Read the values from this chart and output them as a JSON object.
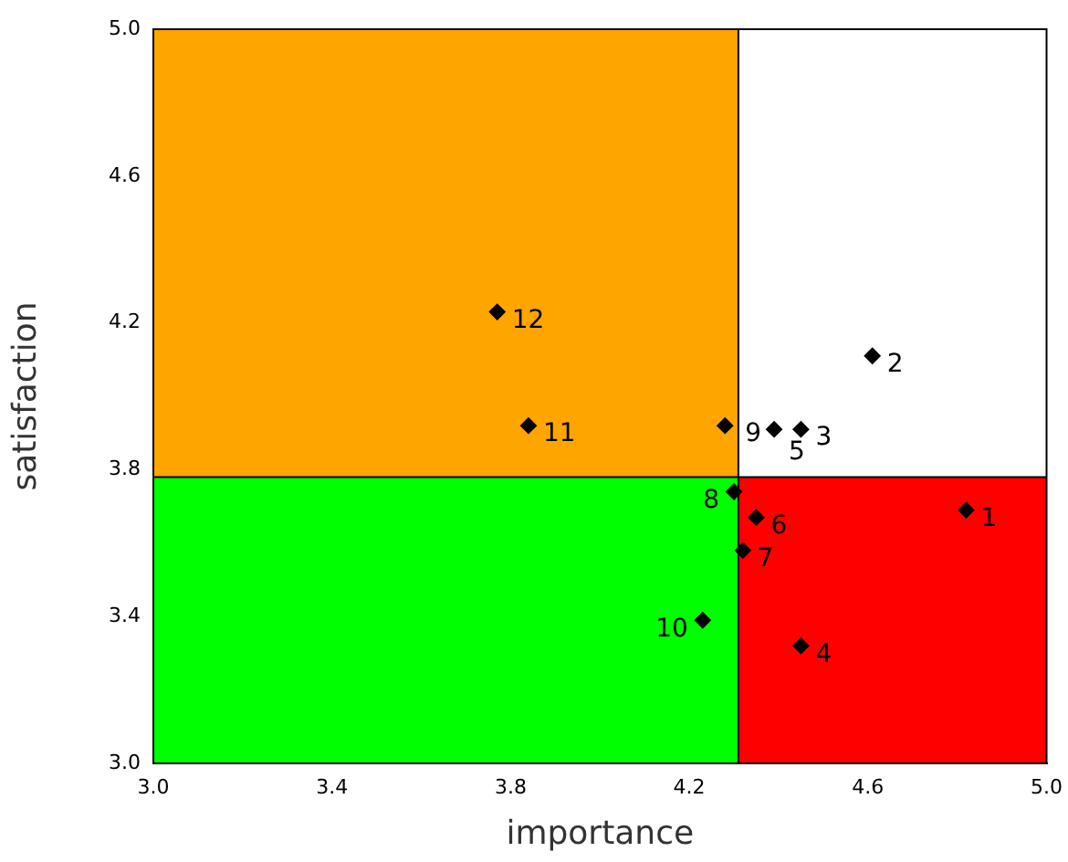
{
  "chart_data": {
    "type": "scatter",
    "xlabel": "importance",
    "ylabel": "satisfaction",
    "x": [
      4.82,
      4.61,
      4.45,
      4.45,
      4.39,
      4.35,
      4.32,
      4.3,
      4.28,
      4.23,
      3.84,
      3.77
    ],
    "values": [
      3.69,
      4.11,
      3.91,
      3.32,
      3.91,
      3.67,
      3.58,
      3.74,
      3.92,
      3.39,
      3.92,
      4.23
    ],
    "annotations": [
      {
        "text": "1",
        "x": 4.82,
        "y": 3.69
      },
      {
        "text": "2",
        "x": 4.61,
        "y": 4.11
      },
      {
        "text": "3",
        "x": 4.45,
        "y": 3.91
      },
      {
        "text": "4",
        "x": 4.45,
        "y": 3.32
      },
      {
        "text": "5",
        "x": 4.39,
        "y": 3.91
      },
      {
        "text": "6",
        "x": 4.35,
        "y": 3.67
      },
      {
        "text": "7",
        "x": 4.32,
        "y": 3.58
      },
      {
        "text": "8",
        "x": 4.3,
        "y": 3.74
      },
      {
        "text": "9",
        "x": 4.28,
        "y": 3.92
      },
      {
        "text": "10",
        "x": 4.23,
        "y": 3.39
      },
      {
        "text": "11",
        "x": 3.84,
        "y": 3.92
      },
      {
        "text": "12",
        "x": 3.77,
        "y": 4.23
      }
    ],
    "color": "#000000",
    "marker": "diamond",
    "xlim": [
      3.0,
      5.0
    ],
    "xticks": [
      {
        "value": 3.0,
        "label": "3.0"
      },
      {
        "value": 3.4,
        "label": "3.4"
      },
      {
        "value": 3.8,
        "label": "3.8"
      },
      {
        "value": 4.2,
        "label": "4.2"
      },
      {
        "value": 4.6,
        "label": "4.6"
      },
      {
        "value": 5.0,
        "label": "5.0"
      }
    ],
    "ylim": [
      3.0,
      5.0
    ],
    "yticks": [
      {
        "value": 3.0,
        "label": "3.0"
      },
      {
        "value": 3.4,
        "label": "3.4"
      },
      {
        "value": 3.8,
        "label": "3.8"
      },
      {
        "value": 4.2,
        "label": "4.2"
      },
      {
        "value": 4.6,
        "label": "4.6"
      },
      {
        "value": 5.0,
        "label": "5.0"
      }
    ],
    "ref_lines": [
      {
        "axis": "x",
        "value": 4.31,
        "color": "#000000"
      },
      {
        "axis": "y",
        "value": 3.78,
        "color": "#000000"
      }
    ],
    "grid": false,
    "legend": false
  }
}
